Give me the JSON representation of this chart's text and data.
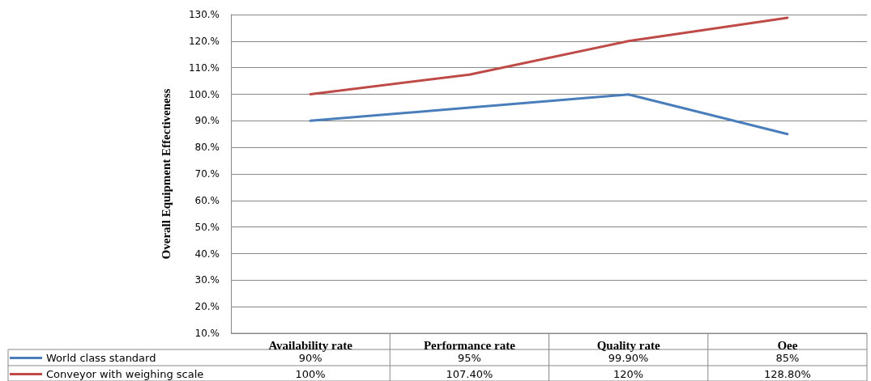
{
  "chart_data": {
    "type": "line",
    "ylabel": "Overall Equipment Effectiveness",
    "categories": [
      "Availability rate",
      "Performance rate",
      "Quality rate",
      "Oee"
    ],
    "series": [
      {
        "name": "World class standard",
        "color": "#4a7ebb",
        "values": [
          90,
          95,
          99.9,
          85
        ],
        "value_labels": [
          "90%",
          "95%",
          "99.90%",
          "85%"
        ]
      },
      {
        "name": "Conveyor with weighing scale",
        "color": "#be4b48",
        "values": [
          100,
          107.4,
          120,
          128.8
        ],
        "value_labels": [
          "100%",
          "107.40%",
          "120%",
          "128.80%"
        ]
      }
    ],
    "ylim": [
      10,
      130
    ],
    "yticks": [
      {
        "value": 10,
        "label": "10.%"
      },
      {
        "value": 20,
        "label": "20.%"
      },
      {
        "value": 30,
        "label": "30.%"
      },
      {
        "value": 40,
        "label": "40.%"
      },
      {
        "value": 50,
        "label": "50.%"
      },
      {
        "value": 60,
        "label": "60.%"
      },
      {
        "value": 70,
        "label": "70.%"
      },
      {
        "value": 80,
        "label": "80.%"
      },
      {
        "value": 90,
        "label": "90.%"
      },
      {
        "value": 100,
        "label": "100.%"
      },
      {
        "value": 110,
        "label": "110.%"
      },
      {
        "value": 120,
        "label": "120.%"
      },
      {
        "value": 130,
        "label": "130.%"
      }
    ],
    "grid": "y",
    "legend": "bottom left",
    "marker": "none",
    "line_style": "solid"
  }
}
